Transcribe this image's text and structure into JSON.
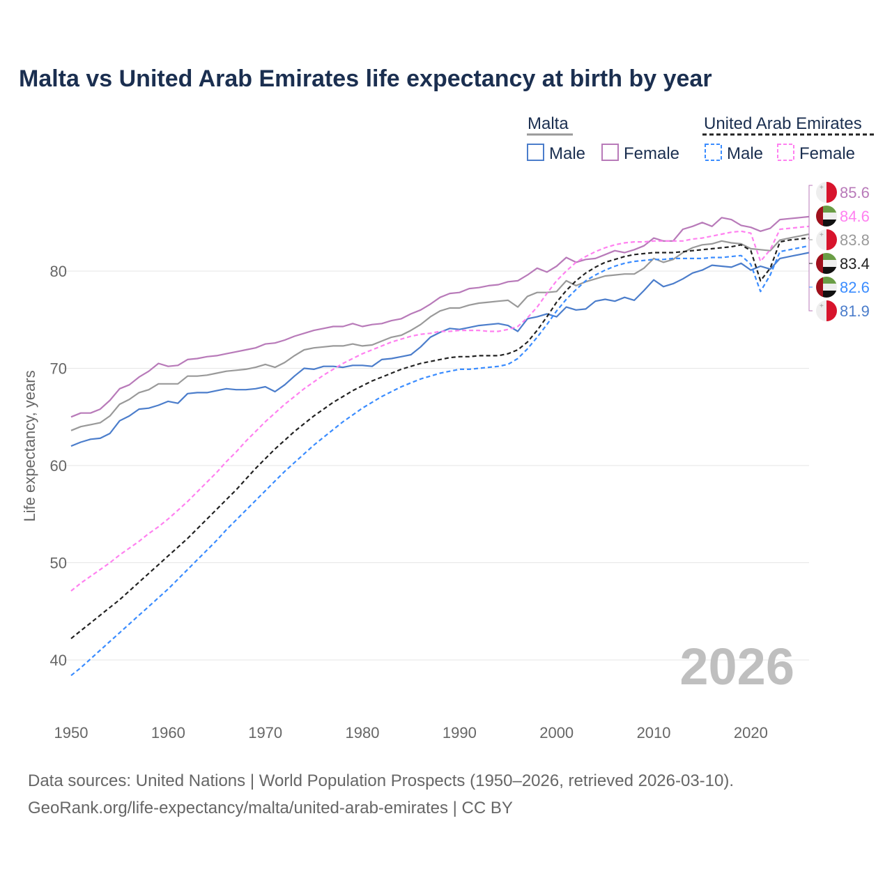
{
  "title": "Malta vs United Arab Emirates life expectancy at birth by year",
  "source_line1": "Data sources: United Nations | World Population Prospects (1950–2026, retrieved 2026-03-10).",
  "source_line2": "GeoRank.org/life-expectancy/malta/united-arab-emirates | CC BY",
  "chart_data": {
    "type": "line",
    "title": "Malta vs United Arab Emirates life expectancy at birth by year",
    "xlabel": "",
    "ylabel": "Life expectancy, years",
    "xlim": [
      1950,
      2026
    ],
    "ylim": [
      37,
      88
    ],
    "xticks": [
      1950,
      1960,
      1970,
      1980,
      1990,
      2000,
      2010,
      2020
    ],
    "yticks": [
      40,
      50,
      60,
      70,
      80
    ],
    "year_watermark": "2026",
    "grid": true,
    "legend": {
      "placement": "top-right",
      "groups": [
        {
          "name": "Malta",
          "items": [
            "Male",
            "Female"
          ]
        },
        {
          "name": "United Arab Emirates",
          "items": [
            "Male",
            "Female"
          ]
        }
      ]
    },
    "x_start": 1950,
    "series": [
      {
        "name": "Malta Female",
        "country": "Malta",
        "flag": "malta",
        "color": "#b87ab9",
        "dashed": false,
        "end_label": "85.6",
        "values": [
          65.0,
          65.4,
          65.4,
          65.8,
          66.7,
          67.9,
          68.3,
          69.1,
          69.7,
          70.5,
          70.2,
          70.3,
          70.9,
          71.0,
          71.2,
          71.3,
          71.5,
          71.7,
          71.9,
          72.1,
          72.5,
          72.6,
          72.9,
          73.3,
          73.6,
          73.9,
          74.1,
          74.3,
          74.3,
          74.6,
          74.3,
          74.5,
          74.6,
          74.9,
          75.1,
          75.6,
          76.0,
          76.6,
          77.3,
          77.7,
          77.8,
          78.2,
          78.3,
          78.5,
          78.6,
          78.9,
          79.0,
          79.6,
          80.3,
          79.9,
          80.5,
          81.4,
          80.9,
          81.2,
          81.3,
          81.7,
          82.1,
          81.9,
          82.2,
          82.6,
          83.4,
          83.1,
          83.1,
          84.3,
          84.6,
          85.0,
          84.6,
          85.5,
          85.3,
          84.7,
          84.5,
          84.1,
          84.4,
          85.3,
          85.4,
          85.5,
          85.6
        ]
      },
      {
        "name": "UAE Female",
        "country": "United Arab Emirates",
        "flag": "uae",
        "color": "#ff80f0",
        "dashed": true,
        "end_label": "84.6",
        "values": [
          47.1,
          47.9,
          48.6,
          49.3,
          50.0,
          50.8,
          51.5,
          52.2,
          53.0,
          53.7,
          54.5,
          55.4,
          56.3,
          57.3,
          58.3,
          59.3,
          60.4,
          61.4,
          62.5,
          63.5,
          64.5,
          65.4,
          66.3,
          67.1,
          67.9,
          68.6,
          69.3,
          69.9,
          70.5,
          71.0,
          71.5,
          71.9,
          72.3,
          72.7,
          73.0,
          73.3,
          73.5,
          73.6,
          73.8,
          73.8,
          73.9,
          73.9,
          73.9,
          73.8,
          73.8,
          74.0,
          74.3,
          75.2,
          76.3,
          77.7,
          79.0,
          80.0,
          80.9,
          81.5,
          82.0,
          82.4,
          82.7,
          82.9,
          83.0,
          83.0,
          83.1,
          83.1,
          83.1,
          83.1,
          83.3,
          83.4,
          83.6,
          83.8,
          84.0,
          84.1,
          83.9,
          81.0,
          82.2,
          84.3,
          84.4,
          84.5,
          84.6
        ]
      },
      {
        "name": "Malta",
        "country": "Malta",
        "flag": "malta",
        "color": "#999999",
        "dashed": false,
        "end_label": "83.8",
        "values": [
          63.6,
          64.0,
          64.2,
          64.4,
          65.1,
          66.3,
          66.8,
          67.5,
          67.8,
          68.4,
          68.4,
          68.4,
          69.2,
          69.2,
          69.3,
          69.5,
          69.7,
          69.8,
          69.9,
          70.1,
          70.4,
          70.1,
          70.6,
          71.3,
          71.9,
          72.1,
          72.2,
          72.3,
          72.3,
          72.5,
          72.3,
          72.4,
          72.8,
          73.2,
          73.4,
          73.9,
          74.5,
          75.3,
          75.9,
          76.2,
          76.2,
          76.5,
          76.7,
          76.8,
          76.9,
          77.0,
          76.3,
          77.4,
          77.8,
          77.8,
          77.9,
          79.0,
          78.5,
          78.9,
          79.2,
          79.5,
          79.6,
          79.7,
          79.7,
          80.3,
          81.3,
          80.9,
          81.2,
          81.9,
          82.4,
          82.7,
          82.8,
          83.1,
          82.9,
          82.8,
          82.3,
          82.2,
          82.1,
          83.2,
          83.4,
          83.6,
          83.8
        ]
      },
      {
        "name": "United Arab Emirates",
        "country": "United Arab Emirates",
        "flag": "uae",
        "color": "#222222",
        "dashed": true,
        "end_label": "83.4",
        "values": [
          42.2,
          43.0,
          43.8,
          44.6,
          45.4,
          46.2,
          47.1,
          48.0,
          48.9,
          49.8,
          50.7,
          51.6,
          52.5,
          53.5,
          54.5,
          55.5,
          56.5,
          57.5,
          58.6,
          59.7,
          60.7,
          61.7,
          62.6,
          63.5,
          64.3,
          65.1,
          65.8,
          66.5,
          67.1,
          67.7,
          68.2,
          68.7,
          69.1,
          69.5,
          69.9,
          70.2,
          70.5,
          70.7,
          70.9,
          71.1,
          71.2,
          71.2,
          71.3,
          71.3,
          71.3,
          71.5,
          71.9,
          72.7,
          73.9,
          75.3,
          76.8,
          78.0,
          79.0,
          79.8,
          80.4,
          80.9,
          81.2,
          81.5,
          81.7,
          81.8,
          81.9,
          81.9,
          81.9,
          82.0,
          82.1,
          82.2,
          82.3,
          82.4,
          82.5,
          82.7,
          82.1,
          79.0,
          80.3,
          83.0,
          83.2,
          83.3,
          83.4
        ]
      },
      {
        "name": "UAE Male",
        "country": "United Arab Emirates",
        "flag": "uae",
        "color": "#3a8cff",
        "dashed": true,
        "end_label": "82.6",
        "values": [
          38.4,
          39.2,
          40.1,
          41.0,
          41.9,
          42.8,
          43.7,
          44.6,
          45.5,
          46.4,
          47.3,
          48.3,
          49.3,
          50.3,
          51.3,
          52.3,
          53.4,
          54.4,
          55.4,
          56.4,
          57.4,
          58.4,
          59.4,
          60.3,
          61.2,
          62.1,
          62.9,
          63.7,
          64.5,
          65.2,
          65.9,
          66.5,
          67.1,
          67.6,
          68.1,
          68.5,
          68.9,
          69.2,
          69.5,
          69.7,
          69.9,
          69.9,
          70.0,
          70.1,
          70.2,
          70.4,
          71.0,
          72.0,
          73.2,
          74.5,
          75.9,
          77.1,
          78.1,
          79.0,
          79.6,
          80.1,
          80.5,
          80.8,
          81.0,
          81.1,
          81.2,
          81.2,
          81.3,
          81.3,
          81.3,
          81.3,
          81.4,
          81.4,
          81.5,
          81.6,
          80.7,
          77.9,
          79.6,
          82.0,
          82.2,
          82.4,
          82.6
        ]
      },
      {
        "name": "Malta Male",
        "country": "Malta",
        "flag": "malta",
        "color": "#4b7dcb",
        "dashed": false,
        "end_label": "81.9",
        "values": [
          62.0,
          62.4,
          62.7,
          62.8,
          63.3,
          64.6,
          65.1,
          65.8,
          65.9,
          66.2,
          66.6,
          66.4,
          67.4,
          67.5,
          67.5,
          67.7,
          67.9,
          67.8,
          67.8,
          67.9,
          68.1,
          67.6,
          68.3,
          69.2,
          70.0,
          69.9,
          70.2,
          70.2,
          70.1,
          70.3,
          70.3,
          70.2,
          70.9,
          71.0,
          71.2,
          71.4,
          72.2,
          73.2,
          73.7,
          74.1,
          74.0,
          74.2,
          74.4,
          74.5,
          74.6,
          74.4,
          73.8,
          75.1,
          75.3,
          75.6,
          75.3,
          76.3,
          76.0,
          76.1,
          76.9,
          77.1,
          76.9,
          77.3,
          77.0,
          78.0,
          79.1,
          78.4,
          78.7,
          79.2,
          79.8,
          80.1,
          80.6,
          80.5,
          80.4,
          80.8,
          80.1,
          80.5,
          80.2,
          81.3,
          81.5,
          81.7,
          81.9
        ]
      }
    ]
  }
}
